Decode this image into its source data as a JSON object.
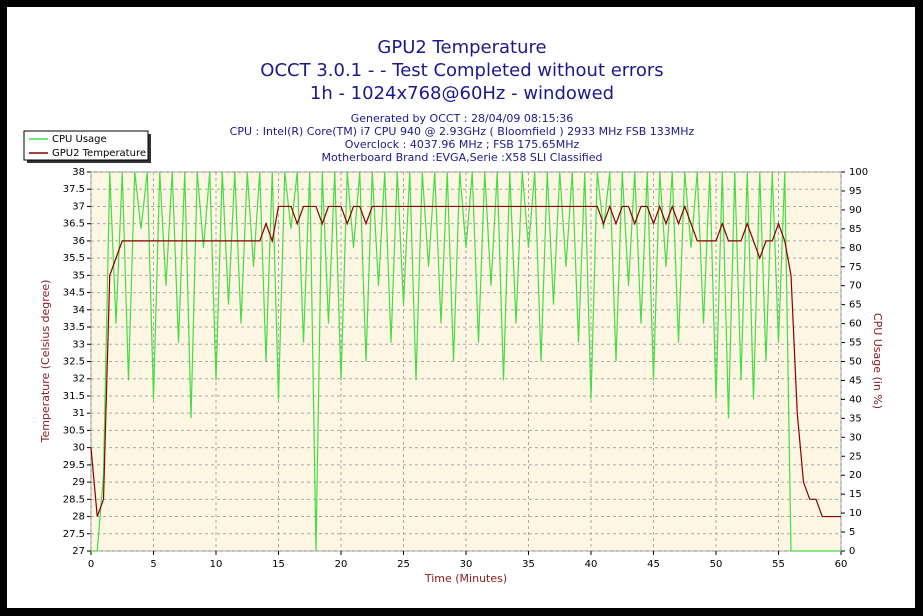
{
  "chart_data": {
    "type": "line",
    "title": "GPU2 Temperature",
    "title_lines": [
      "OCCT 3.0.1 -  - Test Completed without errors",
      "1h - 1024x768@60Hz - windowed"
    ],
    "subtitle_lines": [
      "Generated by OCCT : 28/04/09 08:15:36",
      "CPU : Intel(R) Core(TM) i7 CPU 940 @ 2.93GHz ( Bloomfield ) 2933 MHz FSB 133MHz",
      "Overclock : 4037.96 MHz ; FSB 175.65MHz",
      "Motherboard Brand :EVGA,Serie :X58 SLI Classified"
    ],
    "xlabel": "Time (Minutes)",
    "ylabel": "Temperature (Celsius degree)",
    "y2label": "CPU Usage (in %)",
    "xlim": [
      0,
      60
    ],
    "xticks": [
      0,
      5,
      10,
      15,
      20,
      25,
      30,
      35,
      40,
      45,
      50,
      55,
      60
    ],
    "ylim": [
      27,
      38
    ],
    "yticks": [
      27,
      27.5,
      28,
      28.5,
      29,
      29.5,
      30,
      30.5,
      31,
      31.5,
      32,
      32.5,
      33,
      33.5,
      34,
      34.5,
      35,
      35.5,
      36,
      36.5,
      37,
      37.5,
      38
    ],
    "y2lim": [
      0,
      100
    ],
    "y2ticks": [
      0,
      5,
      10,
      15,
      20,
      25,
      30,
      35,
      40,
      45,
      50,
      55,
      60,
      65,
      70,
      75,
      80,
      85,
      90,
      95,
      100
    ],
    "grid": true,
    "legend": "top-left",
    "x": [
      0,
      0.5,
      1,
      1.5,
      2,
      2.5,
      3,
      3.5,
      4,
      4.5,
      5,
      5.5,
      6,
      6.5,
      7,
      7.5,
      8,
      8.5,
      9,
      9.5,
      10,
      10.5,
      11,
      11.5,
      12,
      12.5,
      13,
      13.5,
      14,
      14.5,
      15,
      15.5,
      16,
      16.5,
      17,
      17.5,
      18,
      18.5,
      19,
      19.5,
      20,
      20.5,
      21,
      21.5,
      22,
      22.5,
      23,
      23.5,
      24,
      24.5,
      25,
      25.5,
      26,
      26.5,
      27,
      27.5,
      28,
      28.5,
      29,
      29.5,
      30,
      30.5,
      31,
      31.5,
      32,
      32.5,
      33,
      33.5,
      34,
      34.5,
      35,
      35.5,
      36,
      36.5,
      37,
      37.5,
      38,
      38.5,
      39,
      39.5,
      40,
      40.5,
      41,
      41.5,
      42,
      42.5,
      43,
      43.5,
      44,
      44.5,
      45,
      45.5,
      46,
      46.5,
      47,
      47.5,
      48,
      48.5,
      49,
      49.5,
      50,
      50.5,
      51,
      51.5,
      52,
      52.5,
      53,
      53.5,
      54,
      54.5,
      55,
      55.5,
      56,
      56.5,
      57,
      57.5,
      58,
      58.5,
      59,
      59.5,
      60
    ],
    "series": [
      {
        "name": "CPU Usage",
        "color": "#44dd44",
        "axis": "y2",
        "values": [
          0,
          0,
          20,
          100,
          60,
          100,
          45,
          100,
          85,
          100,
          40,
          100,
          70,
          100,
          55,
          100,
          35,
          100,
          80,
          100,
          45,
          100,
          65,
          100,
          60,
          100,
          75,
          100,
          50,
          100,
          40,
          100,
          85,
          100,
          55,
          100,
          0,
          100,
          60,
          100,
          45,
          100,
          80,
          100,
          50,
          100,
          70,
          100,
          55,
          100,
          65,
          100,
          45,
          100,
          75,
          100,
          60,
          100,
          50,
          100,
          80,
          100,
          55,
          100,
          70,
          100,
          45,
          100,
          60,
          100,
          80,
          100,
          50,
          100,
          65,
          100,
          75,
          100,
          55,
          100,
          40,
          100,
          85,
          100,
          50,
          100,
          70,
          100,
          60,
          100,
          45,
          100,
          75,
          100,
          55,
          100,
          80,
          100,
          60,
          100,
          40,
          100,
          35,
          100,
          45,
          100,
          40,
          100,
          50,
          100,
          55,
          100,
          0,
          0,
          0,
          0,
          0,
          0,
          0,
          0,
          0
        ]
      },
      {
        "name": "GPU2 Temperature",
        "color": "#880000",
        "axis": "y",
        "values": [
          30,
          28,
          28.5,
          35,
          35.5,
          36,
          36,
          36,
          36,
          36,
          36,
          36,
          36,
          36,
          36,
          36,
          36,
          36,
          36,
          36,
          36,
          36,
          36,
          36,
          36,
          36,
          36,
          36,
          36.5,
          36,
          37,
          37,
          37,
          36.5,
          37,
          37,
          37,
          36.5,
          37,
          37,
          37,
          36.5,
          37,
          37,
          36.5,
          37,
          37,
          37,
          37,
          37,
          37,
          37,
          37,
          37,
          37,
          37,
          37,
          37,
          37,
          37,
          37,
          37,
          37,
          37,
          37,
          37,
          37,
          37,
          37,
          37,
          37,
          37,
          37,
          37,
          37,
          37,
          37,
          37,
          37,
          37,
          37,
          37,
          36.5,
          37,
          36.5,
          37,
          37,
          36.5,
          37,
          37,
          36.5,
          37,
          36.5,
          37,
          36.5,
          37,
          36.5,
          36,
          36,
          36,
          36,
          36.5,
          36,
          36,
          36,
          36.5,
          36,
          35.5,
          36,
          36,
          36.5,
          36,
          35,
          31,
          29,
          28.5,
          28.5,
          28,
          28,
          28,
          28
        ]
      }
    ]
  }
}
